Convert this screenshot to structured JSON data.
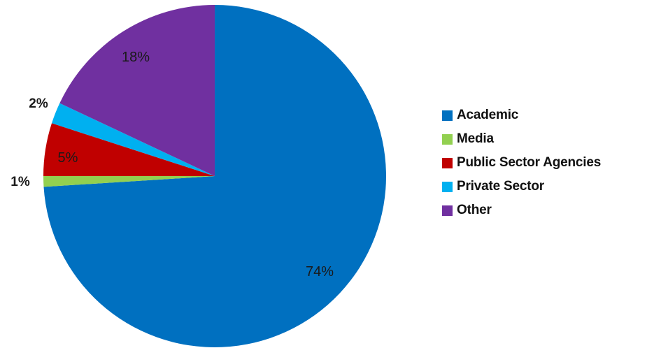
{
  "chart_data": {
    "type": "pie",
    "title": "",
    "legend_position": "right",
    "start_angle_deg": 0,
    "direction": "clockwise",
    "slices": [
      {
        "name": "Academic",
        "value": 74,
        "label": "74%",
        "color": "#0070C0",
        "label_placement": "inside"
      },
      {
        "name": "Media",
        "value": 1,
        "label": "1%",
        "color": "#92D050",
        "label_placement": "outside"
      },
      {
        "name": "Public Sector Agencies",
        "value": 5,
        "label": "5%",
        "color": "#C00000",
        "label_placement": "inside"
      },
      {
        "name": "Private Sector",
        "value": 2,
        "label": "2%",
        "color": "#00B0F0",
        "label_placement": "outside"
      },
      {
        "name": "Other",
        "value": 18,
        "label": "18%",
        "color": "#7030A0",
        "label_placement": "inside"
      }
    ]
  }
}
